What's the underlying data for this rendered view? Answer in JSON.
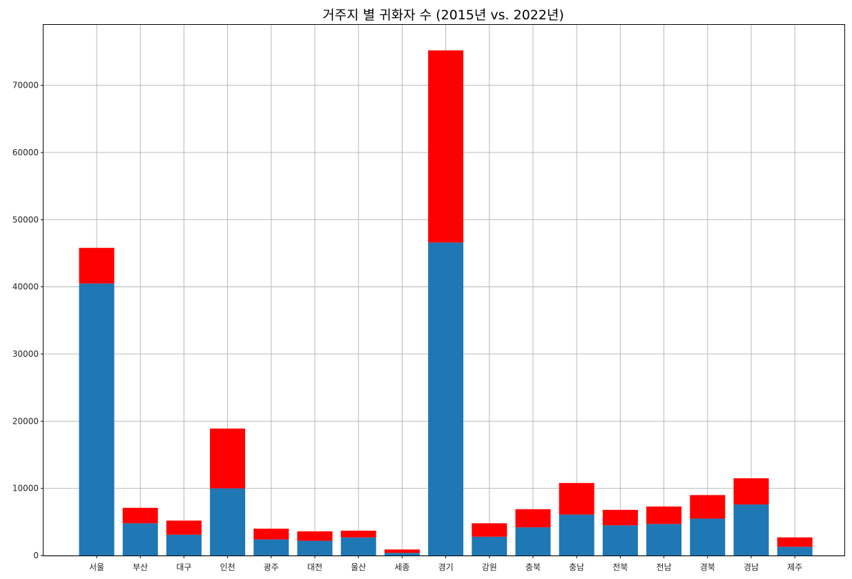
{
  "chart_data": {
    "type": "bar",
    "stacked": true,
    "title": "거주지 별 귀화자 수 (2015년 vs. 2022년)",
    "xlabel": "",
    "ylabel": "",
    "ylim": [
      0,
      79000
    ],
    "yticks": [
      0,
      10000,
      20000,
      30000,
      40000,
      50000,
      60000,
      70000
    ],
    "ytick_labels": [
      "0",
      "10000",
      "20000",
      "30000",
      "40000",
      "50000",
      "60000",
      "70000"
    ],
    "grid": true,
    "categories": [
      "서울",
      "부산",
      "대구",
      "인천",
      "광주",
      "대전",
      "울산",
      "세종",
      "경기",
      "강원",
      "충북",
      "충남",
      "전북",
      "전남",
      "경북",
      "경남",
      "제주"
    ],
    "series": [
      {
        "name": "2015",
        "color": "#1f77b4",
        "values": [
          40500,
          4800,
          3100,
          10000,
          2400,
          2200,
          2700,
          400,
          46600,
          2800,
          4200,
          6100,
          4500,
          4700,
          5500,
          7600,
          1300
        ]
      },
      {
        "name": "2022",
        "color": "#ff0000",
        "values": [
          5300,
          2300,
          2100,
          8900,
          1600,
          1400,
          1000,
          500,
          28600,
          2000,
          2700,
          4700,
          2300,
          2600,
          3500,
          3900,
          1400
        ]
      }
    ]
  }
}
